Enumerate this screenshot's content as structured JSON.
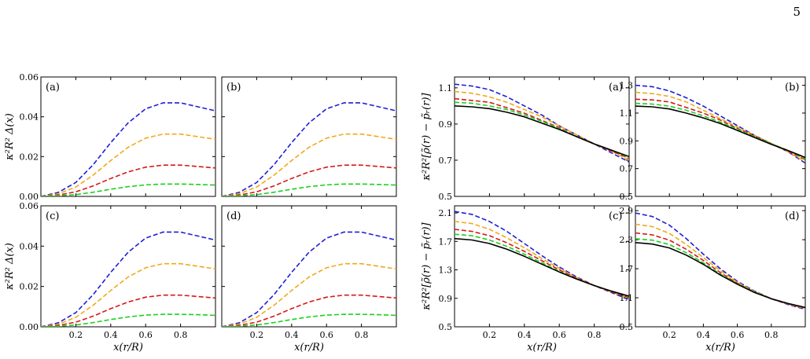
{
  "page_number": "5",
  "colors": {
    "blue": "#1f1fd6",
    "orange": "#f2a81a",
    "red": "#d81818",
    "green": "#19d21e",
    "black": "#000000"
  },
  "chart_data": [
    {
      "type": "line",
      "panel": "(a)",
      "group": "anisotropy",
      "xlabel": "",
      "ylabel": "κ²R² Δ(x)",
      "xlim": [
        0,
        1
      ],
      "ylim": [
        0,
        0.06
      ],
      "yticks": [
        "0.00",
        "0.02",
        "0.04",
        "0.06"
      ],
      "xticks": [],
      "x": [
        0,
        0.1,
        0.2,
        0.3,
        0.4,
        0.5,
        0.6,
        0.7,
        0.8,
        0.9,
        1.0
      ],
      "series": [
        {
          "color": "blue",
          "dash": true,
          "values": [
            0,
            0.002,
            0.007,
            0.016,
            0.027,
            0.037,
            0.044,
            0.047,
            0.047,
            0.045,
            0.043
          ]
        },
        {
          "color": "orange",
          "dash": true,
          "values": [
            0,
            0.0013,
            0.0047,
            0.0107,
            0.018,
            0.0247,
            0.0293,
            0.0313,
            0.0313,
            0.03,
            0.0287
          ]
        },
        {
          "color": "red",
          "dash": true,
          "values": [
            0,
            0.0007,
            0.0023,
            0.0053,
            0.009,
            0.0123,
            0.0147,
            0.0157,
            0.0157,
            0.015,
            0.0143
          ]
        },
        {
          "color": "green",
          "dash": true,
          "values": [
            0,
            0.0003,
            0.0009,
            0.0021,
            0.0036,
            0.0049,
            0.0058,
            0.0062,
            0.0062,
            0.006,
            0.0057
          ]
        }
      ]
    },
    {
      "type": "line",
      "panel": "(b)",
      "group": "anisotropy",
      "xlabel": "",
      "ylabel": "",
      "xlim": [
        0,
        1
      ],
      "ylim": [
        0,
        0.06
      ],
      "yticks": [],
      "xticks": [],
      "x": [
        0,
        0.1,
        0.2,
        0.3,
        0.4,
        0.5,
        0.6,
        0.7,
        0.8,
        0.9,
        1.0
      ],
      "series": [
        {
          "color": "blue",
          "dash": true,
          "values": [
            0,
            0.002,
            0.007,
            0.016,
            0.027,
            0.037,
            0.044,
            0.047,
            0.047,
            0.045,
            0.043
          ]
        },
        {
          "color": "orange",
          "dash": true,
          "values": [
            0,
            0.0013,
            0.0047,
            0.0107,
            0.018,
            0.0247,
            0.0293,
            0.0313,
            0.0313,
            0.03,
            0.0287
          ]
        },
        {
          "color": "red",
          "dash": true,
          "values": [
            0,
            0.0007,
            0.0023,
            0.0053,
            0.009,
            0.0123,
            0.0147,
            0.0157,
            0.0157,
            0.015,
            0.0143
          ]
        },
        {
          "color": "green",
          "dash": true,
          "values": [
            0,
            0.0003,
            0.0009,
            0.0021,
            0.0036,
            0.0049,
            0.0058,
            0.0062,
            0.0062,
            0.006,
            0.0057
          ]
        }
      ]
    },
    {
      "type": "line",
      "panel": "(c)",
      "group": "anisotropy",
      "xlabel": "x(r/R)",
      "ylabel": "κ²R² Δ(x)",
      "xlim": [
        0,
        1
      ],
      "ylim": [
        0,
        0.06
      ],
      "yticks": [
        "0.00",
        "0.02",
        "0.04",
        "0.06"
      ],
      "xticks": [
        "0.2",
        "0.4",
        "0.6",
        "0.8"
      ],
      "x": [
        0,
        0.1,
        0.2,
        0.3,
        0.4,
        0.5,
        0.6,
        0.7,
        0.8,
        0.9,
        1.0
      ],
      "series": [
        {
          "color": "blue",
          "dash": true,
          "values": [
            0,
            0.002,
            0.007,
            0.016,
            0.027,
            0.037,
            0.044,
            0.047,
            0.047,
            0.045,
            0.043
          ]
        },
        {
          "color": "orange",
          "dash": true,
          "values": [
            0,
            0.0013,
            0.0047,
            0.0107,
            0.018,
            0.0247,
            0.0293,
            0.0313,
            0.0313,
            0.03,
            0.0287
          ]
        },
        {
          "color": "red",
          "dash": true,
          "values": [
            0,
            0.0007,
            0.0023,
            0.0053,
            0.009,
            0.0123,
            0.0147,
            0.0157,
            0.0157,
            0.015,
            0.0143
          ]
        },
        {
          "color": "green",
          "dash": true,
          "values": [
            0,
            0.0003,
            0.0009,
            0.0021,
            0.0036,
            0.0049,
            0.0058,
            0.0062,
            0.0062,
            0.006,
            0.0057
          ]
        }
      ]
    },
    {
      "type": "line",
      "panel": "(d)",
      "group": "anisotropy",
      "xlabel": "x(r/R)",
      "ylabel": "",
      "xlim": [
        0,
        1
      ],
      "ylim": [
        0,
        0.06
      ],
      "yticks": [],
      "xticks": [
        "0.2",
        "0.4",
        "0.6",
        "0.8"
      ],
      "x": [
        0,
        0.1,
        0.2,
        0.3,
        0.4,
        0.5,
        0.6,
        0.7,
        0.8,
        0.9,
        1.0
      ],
      "series": [
        {
          "color": "blue",
          "dash": true,
          "values": [
            0,
            0.002,
            0.007,
            0.016,
            0.027,
            0.037,
            0.044,
            0.047,
            0.047,
            0.045,
            0.043
          ]
        },
        {
          "color": "orange",
          "dash": true,
          "values": [
            0,
            0.0013,
            0.0047,
            0.0107,
            0.018,
            0.0247,
            0.0293,
            0.0313,
            0.0313,
            0.03,
            0.0287
          ]
        },
        {
          "color": "red",
          "dash": true,
          "values": [
            0,
            0.0007,
            0.0023,
            0.0053,
            0.009,
            0.0123,
            0.0147,
            0.0157,
            0.0157,
            0.015,
            0.0143
          ]
        },
        {
          "color": "green",
          "dash": true,
          "values": [
            0,
            0.0003,
            0.0009,
            0.0021,
            0.0036,
            0.0049,
            0.0058,
            0.0062,
            0.0062,
            0.006,
            0.0057
          ]
        }
      ]
    },
    {
      "type": "line",
      "panel": "(a)",
      "group": "pressure",
      "xlabel": "",
      "ylabel": "κ²R²[ρ̃(r) − p̃ᵣ(r)]",
      "xlim": [
        0,
        1
      ],
      "ylim": [
        0.5,
        1.16
      ],
      "yticks": [
        "0.5",
        "0.7",
        "0.9",
        "1.1"
      ],
      "xticks": [],
      "x": [
        0,
        0.1,
        0.2,
        0.3,
        0.4,
        0.5,
        0.6,
        0.7,
        0.8,
        0.9,
        1.0
      ],
      "series": [
        {
          "color": "blue",
          "dash": true,
          "values": [
            1.12,
            1.11,
            1.09,
            1.05,
            1.0,
            0.95,
            0.89,
            0.84,
            0.79,
            0.74,
            0.69
          ]
        },
        {
          "color": "orange",
          "dash": true,
          "values": [
            1.08,
            1.07,
            1.05,
            1.02,
            0.98,
            0.94,
            0.89,
            0.84,
            0.79,
            0.75,
            0.7
          ]
        },
        {
          "color": "red",
          "dash": true,
          "values": [
            1.04,
            1.03,
            1.02,
            0.99,
            0.96,
            0.92,
            0.88,
            0.83,
            0.79,
            0.75,
            0.71
          ]
        },
        {
          "color": "green",
          "dash": true,
          "values": [
            1.02,
            1.015,
            1.0,
            0.98,
            0.95,
            0.915,
            0.875,
            0.83,
            0.79,
            0.755,
            0.715
          ]
        },
        {
          "color": "black",
          "dash": false,
          "values": [
            1.0,
            0.995,
            0.985,
            0.965,
            0.94,
            0.905,
            0.87,
            0.83,
            0.79,
            0.755,
            0.72
          ]
        }
      ]
    },
    {
      "type": "line",
      "panel": "(b)",
      "group": "pressure",
      "xlabel": "",
      "ylabel": "",
      "xlim": [
        0,
        1
      ],
      "ylim": [
        0.5,
        1.36
      ],
      "yticks": [
        "0.5",
        "0.7",
        "0.9",
        "1.1",
        "1.3"
      ],
      "xticks": [],
      "x": [
        0,
        0.1,
        0.2,
        0.3,
        0.4,
        0.5,
        0.6,
        0.7,
        0.8,
        0.9,
        1.0
      ],
      "series": [
        {
          "color": "blue",
          "dash": true,
          "values": [
            1.3,
            1.29,
            1.26,
            1.21,
            1.15,
            1.08,
            1.01,
            0.94,
            0.88,
            0.82,
            0.74
          ]
        },
        {
          "color": "orange",
          "dash": true,
          "values": [
            1.25,
            1.24,
            1.22,
            1.18,
            1.12,
            1.06,
            1.0,
            0.94,
            0.88,
            0.82,
            0.75
          ]
        },
        {
          "color": "red",
          "dash": true,
          "values": [
            1.2,
            1.195,
            1.18,
            1.14,
            1.1,
            1.05,
            0.99,
            0.935,
            0.88,
            0.825,
            0.765
          ]
        },
        {
          "color": "green",
          "dash": true,
          "values": [
            1.17,
            1.165,
            1.15,
            1.12,
            1.08,
            1.035,
            0.985,
            0.93,
            0.88,
            0.83,
            0.77
          ]
        },
        {
          "color": "black",
          "dash": false,
          "values": [
            1.15,
            1.145,
            1.13,
            1.1,
            1.065,
            1.025,
            0.975,
            0.925,
            0.875,
            0.83,
            0.78
          ]
        }
      ]
    },
    {
      "type": "line",
      "panel": "(c)",
      "group": "pressure",
      "xlabel": "x(r/R)",
      "ylabel": "κ²R²[ρ̃(r) − p̃ᵣ(r)]",
      "xlim": [
        0,
        1
      ],
      "ylim": [
        0.5,
        2.2
      ],
      "yticks": [
        "0.5",
        "0.9",
        "1.3",
        "1.7",
        "2.1"
      ],
      "xticks": [
        "0.2",
        "0.4",
        "0.6",
        "0.8"
      ],
      "x": [
        0,
        0.1,
        0.2,
        0.3,
        0.4,
        0.5,
        0.6,
        0.7,
        0.8,
        0.9,
        1.0
      ],
      "series": [
        {
          "color": "blue",
          "dash": true,
          "values": [
            2.12,
            2.08,
            1.98,
            1.84,
            1.67,
            1.5,
            1.34,
            1.2,
            1.08,
            0.98,
            0.88
          ]
        },
        {
          "color": "orange",
          "dash": true,
          "values": [
            1.98,
            1.95,
            1.87,
            1.75,
            1.61,
            1.46,
            1.32,
            1.19,
            1.08,
            0.99,
            0.9
          ]
        },
        {
          "color": "red",
          "dash": true,
          "values": [
            1.87,
            1.84,
            1.78,
            1.68,
            1.56,
            1.43,
            1.3,
            1.18,
            1.08,
            0.99,
            0.91
          ]
        },
        {
          "color": "green",
          "dash": true,
          "values": [
            1.8,
            1.78,
            1.72,
            1.63,
            1.52,
            1.4,
            1.28,
            1.17,
            1.08,
            1.0,
            0.92
          ]
        },
        {
          "color": "black",
          "dash": false,
          "values": [
            1.74,
            1.72,
            1.67,
            1.59,
            1.49,
            1.38,
            1.27,
            1.17,
            1.08,
            1.0,
            0.93
          ]
        }
      ]
    },
    {
      "type": "line",
      "panel": "(d)",
      "group": "pressure",
      "xlabel": "x(r/R)",
      "ylabel": "",
      "xlim": [
        0,
        1
      ],
      "ylim": [
        0.5,
        3.0
      ],
      "yticks": [
        "0.5",
        "1.1",
        "1.7",
        "2.3",
        "2.9"
      ],
      "xticks": [
        "0.2",
        "0.4",
        "0.6",
        "0.8"
      ],
      "x": [
        0,
        0.1,
        0.2,
        0.3,
        0.4,
        0.5,
        0.6,
        0.7,
        0.8,
        0.9,
        1.0
      ],
      "series": [
        {
          "color": "blue",
          "dash": true,
          "values": [
            2.85,
            2.78,
            2.6,
            2.32,
            2.0,
            1.7,
            1.44,
            1.24,
            1.08,
            0.96,
            0.86
          ]
        },
        {
          "color": "orange",
          "dash": true,
          "values": [
            2.62,
            2.57,
            2.43,
            2.2,
            1.93,
            1.66,
            1.42,
            1.23,
            1.08,
            0.97,
            0.88
          ]
        },
        {
          "color": "red",
          "dash": true,
          "values": [
            2.44,
            2.4,
            2.29,
            2.1,
            1.87,
            1.62,
            1.4,
            1.22,
            1.08,
            0.97,
            0.89
          ]
        },
        {
          "color": "green",
          "dash": true,
          "values": [
            2.32,
            2.29,
            2.2,
            2.03,
            1.82,
            1.59,
            1.39,
            1.22,
            1.08,
            0.98,
            0.9
          ]
        },
        {
          "color": "black",
          "dash": false,
          "values": [
            2.24,
            2.21,
            2.13,
            1.98,
            1.79,
            1.57,
            1.38,
            1.21,
            1.08,
            0.98,
            0.9
          ]
        }
      ]
    }
  ]
}
